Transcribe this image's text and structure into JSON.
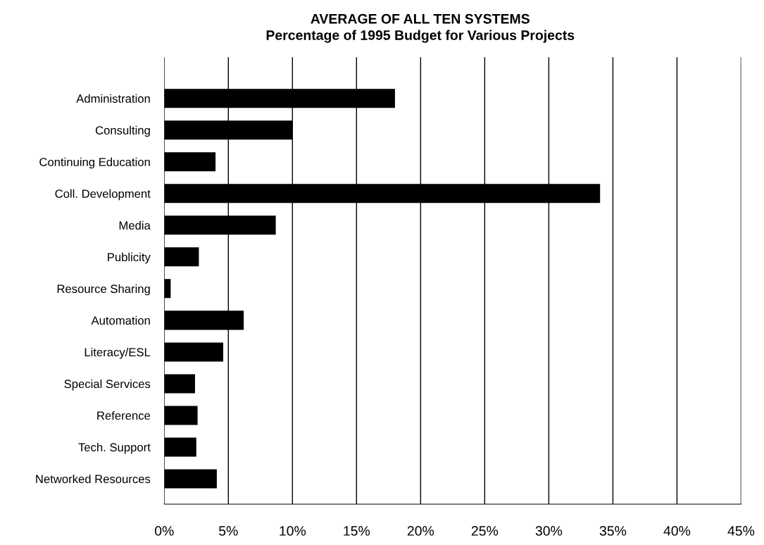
{
  "chart_data": {
    "type": "bar",
    "orientation": "horizontal",
    "title": "AVERAGE OF ALL TEN SYSTEMS",
    "subtitle": "Percentage of 1995 Budget for Various Projects",
    "categories": [
      "Administration",
      "Consulting",
      "Continuing Education",
      "Coll. Development",
      "Media",
      "Publicity",
      "Resource Sharing",
      "Automation",
      "Literacy/ESL",
      "Special Services",
      "Reference",
      "Tech. Support",
      "Networked Resources"
    ],
    "values": [
      18,
      10,
      4,
      34,
      8.7,
      2.7,
      0.5,
      6.2,
      4.6,
      2.4,
      2.6,
      2.5,
      4.1
    ],
    "color": "#000000",
    "xlim": [
      0,
      45
    ],
    "xticks": [
      {
        "value": 0,
        "label": "0%"
      },
      {
        "value": 5,
        "label": "5%"
      },
      {
        "value": 10,
        "label": "10%"
      },
      {
        "value": 15,
        "label": "15%"
      },
      {
        "value": 20,
        "label": "20%"
      },
      {
        "value": 25,
        "label": "25%"
      },
      {
        "value": 30,
        "label": "30%"
      },
      {
        "value": 35,
        "label": "35%"
      },
      {
        "value": 40,
        "label": "40%"
      },
      {
        "value": 45,
        "label": "45%"
      }
    ],
    "grid": "x"
  }
}
